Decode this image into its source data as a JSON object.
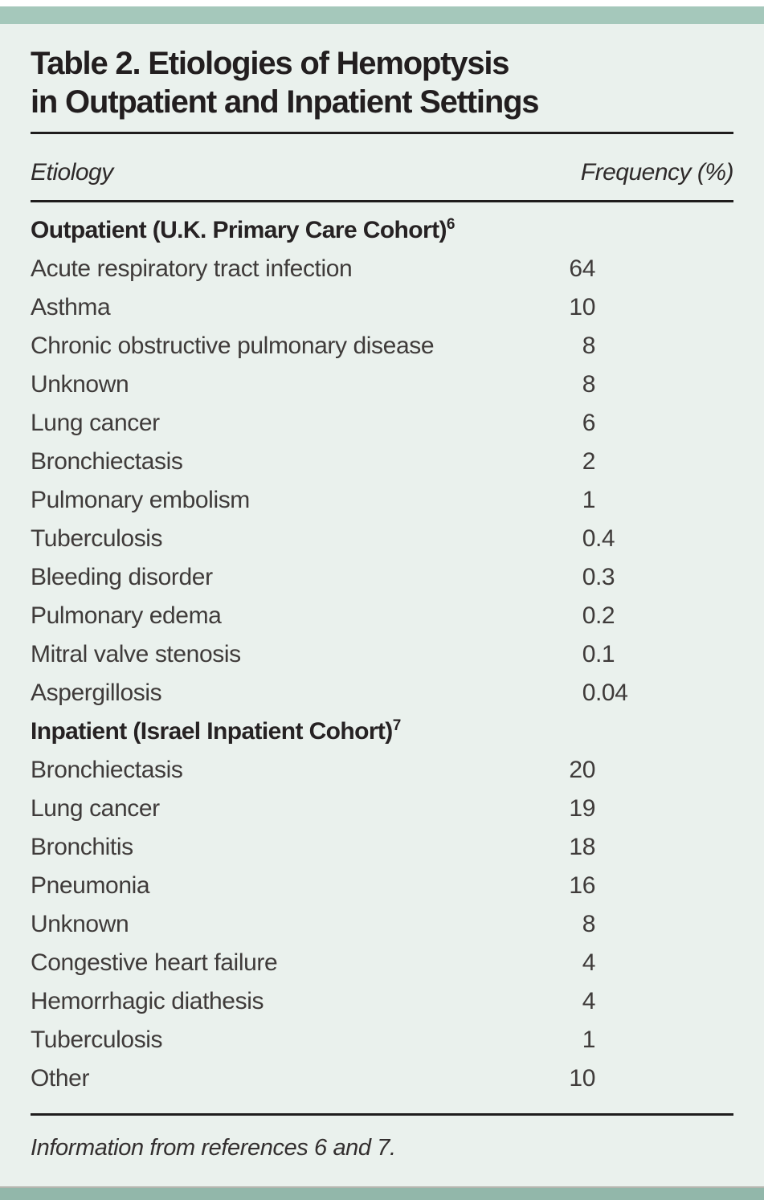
{
  "page": {
    "kind": "journal-table",
    "title_line1": "Table 2. Etiologies of Hemoptysis",
    "title_line2": "in Outpatient and Inpatient Settings",
    "footnote": "Information from references 6 and 7."
  },
  "colors": {
    "top_bar_teal": "#a5c8bb",
    "body_mint": "#eaf1ed",
    "footer_teal": "#92b7aa",
    "rule_black": "#1f1d1d",
    "title_text": "#221e1f",
    "body_text": "#3f3b3a"
  },
  "columns": {
    "etiology": "Etiology",
    "frequency": "Frequency (%)"
  },
  "table": {
    "sections": [
      {
        "header": {
          "label": "Outpatient (U.K. Primary Care Cohort)",
          "sup": "6"
        },
        "rows": [
          {
            "label": "Acute respiratory tract infection",
            "value": "64",
            "int": "64",
            "frac": ""
          },
          {
            "label": "Asthma",
            "value": "10",
            "int": "10",
            "frac": ""
          },
          {
            "label": "Chronic obstructive pulmonary disease",
            "value": "8",
            "int": "8",
            "frac": ""
          },
          {
            "label": "Unknown",
            "value": "8",
            "int": "8",
            "frac": ""
          },
          {
            "label": "Lung cancer",
            "value": "6",
            "int": "6",
            "frac": ""
          },
          {
            "label": "Bronchiectasis",
            "value": "2",
            "int": "2",
            "frac": ""
          },
          {
            "label": "Pulmonary embolism",
            "value": "1",
            "int": "1",
            "frac": ""
          },
          {
            "label": "Tuberculosis",
            "value": "0.4",
            "int": "0",
            "frac": ".4"
          },
          {
            "label": "Bleeding disorder",
            "value": "0.3",
            "int": "0",
            "frac": ".3"
          },
          {
            "label": "Pulmonary edema",
            "value": "0.2",
            "int": "0",
            "frac": ".2"
          },
          {
            "label": "Mitral valve stenosis",
            "value": "0.1",
            "int": "0",
            "frac": ".1"
          },
          {
            "label": "Aspergillosis",
            "value": "0.04",
            "int": "0",
            "frac": ".04"
          }
        ]
      },
      {
        "header": {
          "label": "Inpatient (Israel Inpatient Cohort)",
          "sup": "7"
        },
        "rows": [
          {
            "label": "Bronchiectasis",
            "value": "20",
            "int": "20",
            "frac": ""
          },
          {
            "label": "Lung cancer",
            "value": "19",
            "int": "19",
            "frac": ""
          },
          {
            "label": "Bronchitis",
            "value": "18",
            "int": "18",
            "frac": ""
          },
          {
            "label": "Pneumonia",
            "value": "16",
            "int": "16",
            "frac": ""
          },
          {
            "label": "Unknown",
            "value": "8",
            "int": "8",
            "frac": ""
          },
          {
            "label": "Congestive heart failure",
            "value": "4",
            "int": "4",
            "frac": ""
          },
          {
            "label": "Hemorrhagic diathesis",
            "value": "4",
            "int": "4",
            "frac": ""
          },
          {
            "label": "Tuberculosis",
            "value": "1",
            "int": "1",
            "frac": ""
          },
          {
            "label": "Other",
            "value": "10",
            "int": "10",
            "frac": ""
          }
        ]
      }
    ]
  }
}
